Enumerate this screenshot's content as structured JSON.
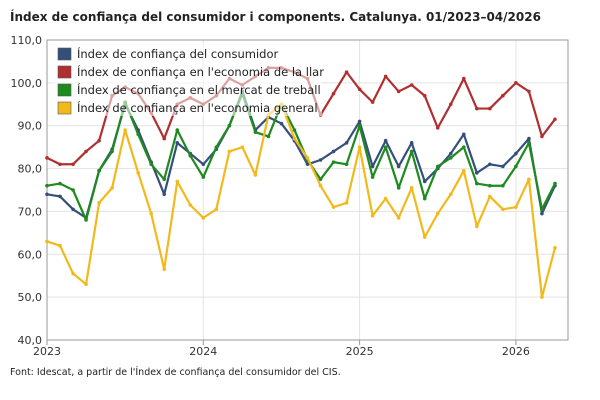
{
  "chart_data": {
    "type": "line",
    "title": "Índex de confiança del consumidor i components. Catalunya. 01/2023–04/2026",
    "xlabel": "",
    "ylabel": "",
    "ylim": [
      40,
      110
    ],
    "yticks": [
      "110,0",
      "100,0",
      "90,0",
      "80,0",
      "70,0",
      "60,0",
      "50,0",
      "40,0"
    ],
    "ytick_values": [
      110,
      100,
      90,
      80,
      70,
      60,
      50,
      40
    ],
    "x_start": "2023-01",
    "x_end": "2026-04",
    "xticks": [
      "2023",
      "2024",
      "2025",
      "2026"
    ],
    "x": [
      "2023-01",
      "2023-02",
      "2023-03",
      "2023-04",
      "2023-05",
      "2023-06",
      "2023-07",
      "2023-08",
      "2023-09",
      "2023-10",
      "2023-11",
      "2023-12",
      "2024-01",
      "2024-02",
      "2024-03",
      "2024-04",
      "2024-05",
      "2024-06",
      "2024-07",
      "2024-08",
      "2024-09",
      "2024-10",
      "2024-11",
      "2024-12",
      "2025-01",
      "2025-02",
      "2025-03",
      "2025-04",
      "2025-05",
      "2025-06",
      "2025-07",
      "2025-08",
      "2025-09",
      "2025-10",
      "2025-11",
      "2025-12",
      "2026-01",
      "2026-02",
      "2026-03",
      "2026-04"
    ],
    "grid": true,
    "legend_position": "top-left",
    "series": [
      {
        "name": "Índex de confiança del consumidor",
        "color": "#34507a",
        "values": [
          74.0,
          73.5,
          70.5,
          68.5,
          79.5,
          84.5,
          95.0,
          89.0,
          81.5,
          74.0,
          86.0,
          83.5,
          81.0,
          84.5,
          90.0,
          98.0,
          89.0,
          92.0,
          90.5,
          86.5,
          81.0,
          82.0,
          84.0,
          86.0,
          91.0,
          80.5,
          86.5,
          80.5,
          86.0,
          77.0,
          80.0,
          83.5,
          88.0,
          79.0,
          81.0,
          80.5,
          83.5,
          87.0,
          69.5,
          76.0
        ]
      },
      {
        "name": "Índex de confiança en l'economia de la llar",
        "color": "#b03030",
        "values": [
          82.5,
          81.0,
          81.0,
          84.0,
          86.5,
          97.0,
          99.0,
          97.5,
          93.0,
          87.0,
          95.0,
          96.5,
          95.0,
          97.0,
          101.0,
          99.5,
          101.5,
          103.5,
          103.5,
          102.5,
          101.0,
          92.5,
          97.5,
          102.5,
          98.5,
          95.5,
          101.5,
          98.0,
          99.5,
          97.0,
          89.5,
          95.0,
          101.0,
          94.0,
          94.0,
          97.0,
          100.0,
          98.0,
          87.5,
          91.5
        ]
      },
      {
        "name": "Índex de confiança en el mercat de treball",
        "color": "#1f8a1f",
        "values": [
          76.0,
          76.5,
          75.0,
          68.0,
          79.5,
          84.0,
          95.5,
          88.0,
          81.0,
          77.5,
          89.0,
          83.0,
          78.0,
          85.0,
          90.0,
          97.5,
          88.5,
          87.5,
          95.0,
          89.0,
          82.0,
          77.5,
          81.5,
          81.0,
          90.0,
          78.0,
          85.0,
          75.5,
          84.0,
          73.0,
          80.5,
          82.5,
          85.0,
          76.5,
          76.0,
          76.0,
          80.5,
          86.0,
          70.5,
          76.5
        ]
      },
      {
        "name": "Índex de confiança en l'economia general",
        "color": "#f2b91d",
        "values": [
          63.0,
          62.0,
          55.5,
          53.0,
          72.0,
          75.5,
          89.0,
          79.0,
          69.5,
          56.5,
          77.0,
          71.5,
          68.5,
          70.5,
          84.0,
          85.0,
          78.5,
          92.5,
          95.0,
          87.0,
          82.5,
          76.0,
          71.0,
          72.0,
          85.0,
          69.0,
          73.0,
          68.5,
          75.5,
          64.0,
          69.5,
          74.0,
          79.5,
          66.5,
          73.5,
          70.5,
          71.0,
          77.5,
          50.0,
          61.5
        ]
      }
    ]
  },
  "source": "Font: Idescat, a partir de l'Índex de confiança del consumidor del CIS."
}
